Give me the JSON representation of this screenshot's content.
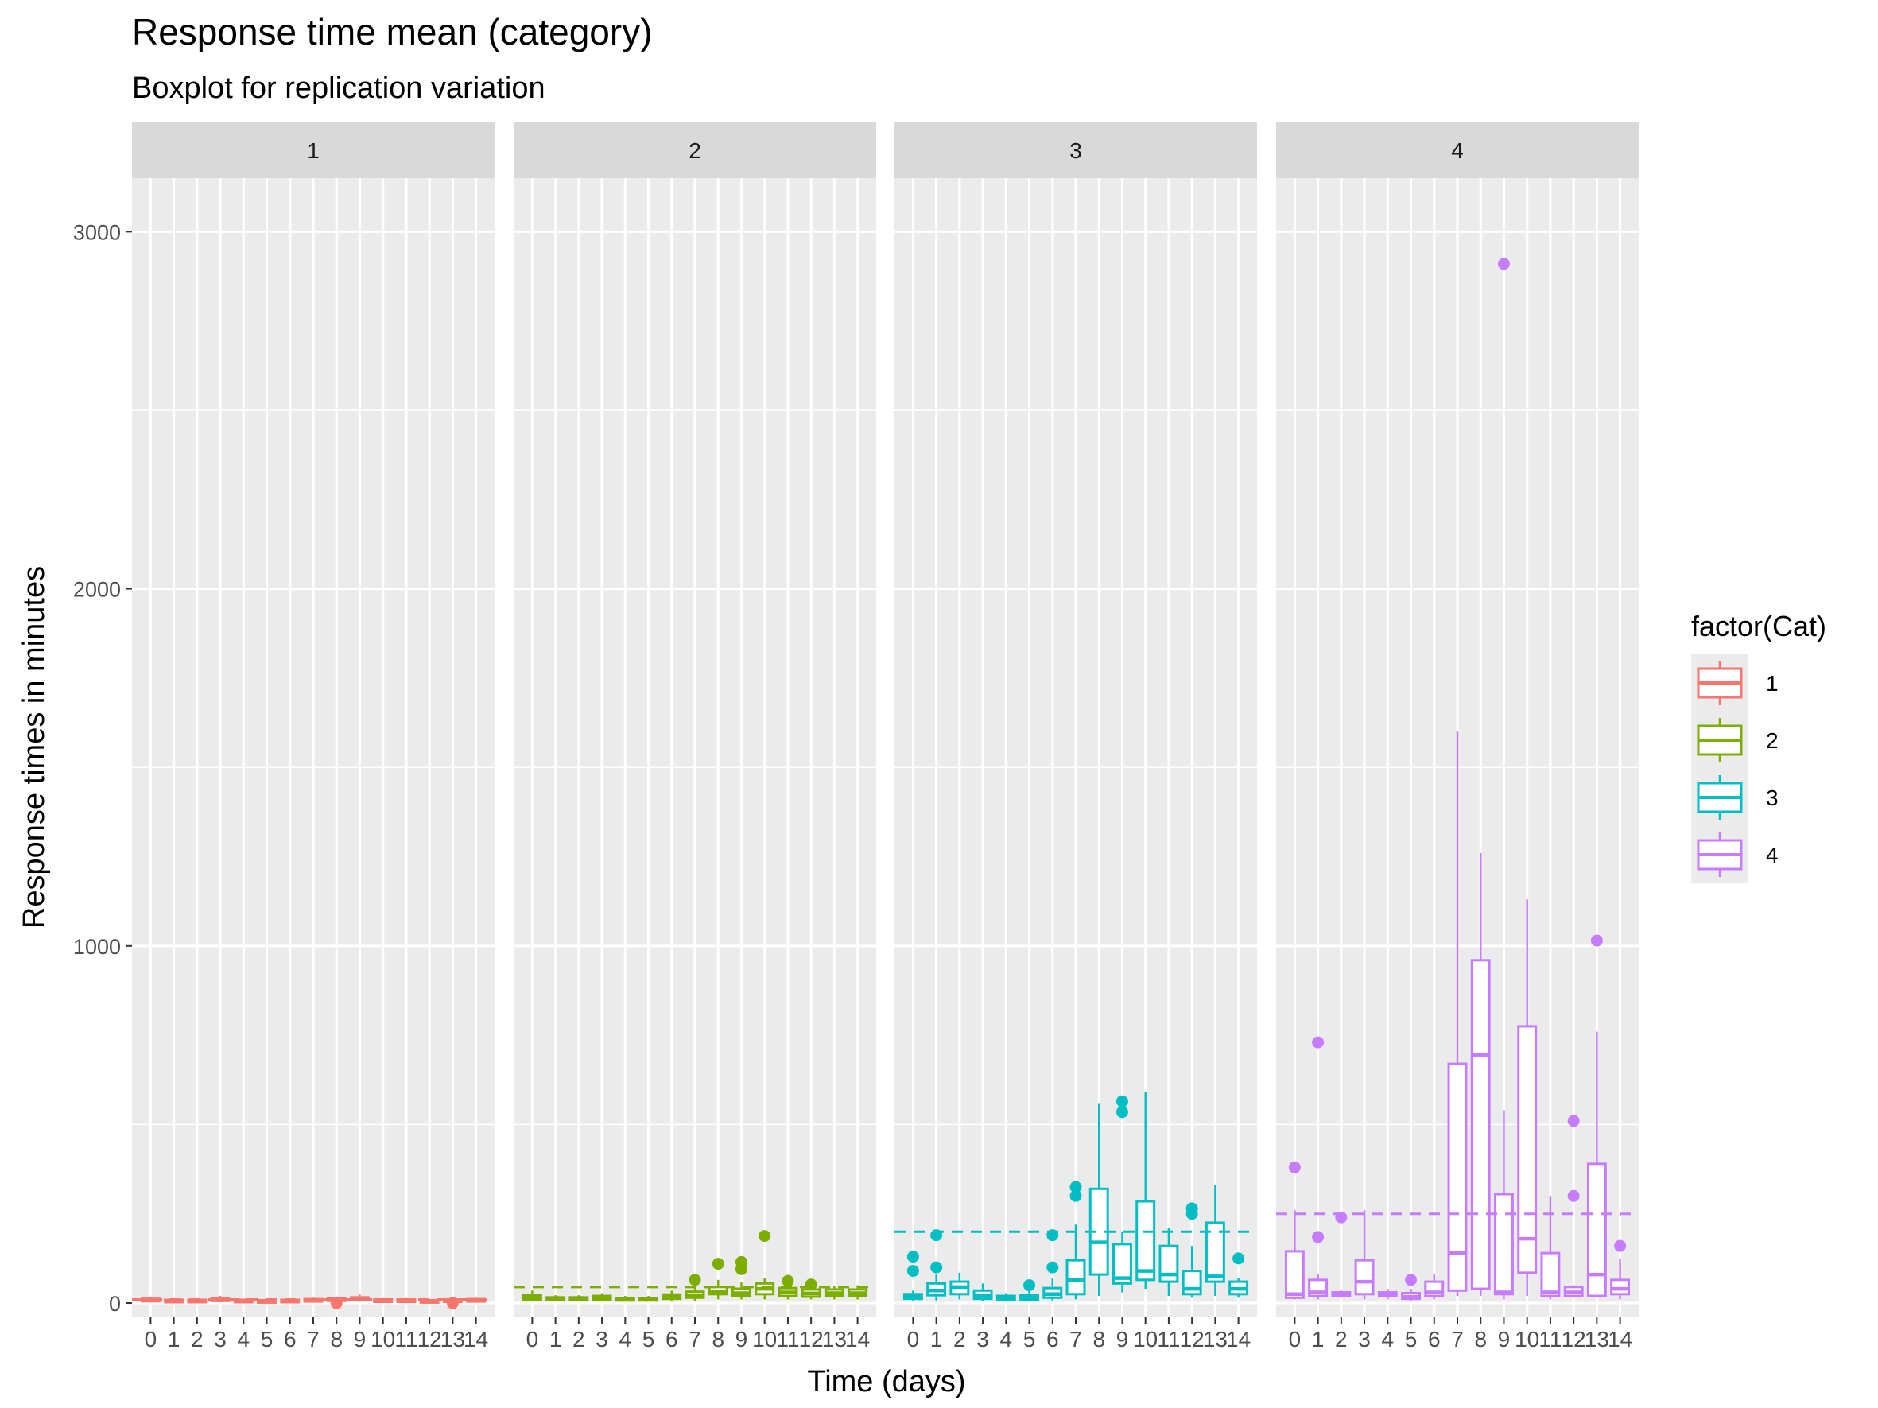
{
  "chart_data": {
    "type": "boxplot",
    "title": "Response time mean (category)",
    "subtitle": "Boxplot for replication variation",
    "xlabel": "Time (days)",
    "ylabel": "Response times in minutes",
    "ylim": [
      -40,
      3150
    ],
    "y_ticks": [
      0,
      1000,
      2000,
      3000
    ],
    "x_categories": [
      "0",
      "1",
      "2",
      "3",
      "4",
      "5",
      "6",
      "7",
      "8",
      "9",
      "10",
      "11",
      "12",
      "13",
      "14"
    ],
    "legend": {
      "title": "factor(Cat)",
      "placement": "right",
      "items": [
        "1",
        "2",
        "3",
        "4"
      ]
    },
    "colors": {
      "1": "#F8766D",
      "2": "#7CAE00",
      "3": "#00BFC4",
      "4": "#C77CFF",
      "panel_bg": "#EBEBEB",
      "strip_bg": "#D9D9D9",
      "grid": "#FFFFFF"
    },
    "grid": true,
    "panels": [
      {
        "category": "1",
        "strip_label": "1",
        "mean_line": 10,
        "boxes": [
          {
            "day": "0",
            "min": 2,
            "q1": 5,
            "median": 8,
            "q3": 12,
            "max": 18,
            "outliers": []
          },
          {
            "day": "1",
            "min": 3,
            "q1": 5,
            "median": 7,
            "q3": 9,
            "max": 12,
            "outliers": []
          },
          {
            "day": "2",
            "min": 3,
            "q1": 5,
            "median": 7,
            "q3": 9,
            "max": 12,
            "outliers": []
          },
          {
            "day": "3",
            "min": 3,
            "q1": 6,
            "median": 9,
            "q3": 13,
            "max": 20,
            "outliers": []
          },
          {
            "day": "4",
            "min": 3,
            "q1": 5,
            "median": 7,
            "q3": 9,
            "max": 12,
            "outliers": []
          },
          {
            "day": "5",
            "min": 3,
            "q1": 4,
            "median": 6,
            "q3": 8,
            "max": 11,
            "outliers": []
          },
          {
            "day": "6",
            "min": 3,
            "q1": 5,
            "median": 7,
            "q3": 9,
            "max": 12,
            "outliers": []
          },
          {
            "day": "7",
            "min": 3,
            "q1": 6,
            "median": 8,
            "q3": 11,
            "max": 15,
            "outliers": []
          },
          {
            "day": "8",
            "min": 3,
            "q1": 6,
            "median": 9,
            "q3": 13,
            "max": 18,
            "outliers": [
              0
            ]
          },
          {
            "day": "9",
            "min": 4,
            "q1": 8,
            "median": 12,
            "q3": 16,
            "max": 24,
            "outliers": []
          },
          {
            "day": "10",
            "min": 3,
            "q1": 5,
            "median": 8,
            "q3": 10,
            "max": 14,
            "outliers": []
          },
          {
            "day": "11",
            "min": 3,
            "q1": 5,
            "median": 7,
            "q3": 10,
            "max": 14,
            "outliers": []
          },
          {
            "day": "12",
            "min": 3,
            "q1": 4,
            "median": 6,
            "q3": 8,
            "max": 11,
            "outliers": []
          },
          {
            "day": "13",
            "min": 3,
            "q1": 5,
            "median": 7,
            "q3": 10,
            "max": 13,
            "outliers": [
              0
            ]
          },
          {
            "day": "14",
            "min": 3,
            "q1": 5,
            "median": 8,
            "q3": 11,
            "max": 15,
            "outliers": []
          }
        ]
      },
      {
        "category": "2",
        "strip_label": "2",
        "mean_line": 45,
        "boxes": [
          {
            "day": "0",
            "min": 5,
            "q1": 10,
            "median": 14,
            "q3": 22,
            "max": 35,
            "outliers": []
          },
          {
            "day": "1",
            "min": 5,
            "q1": 9,
            "median": 12,
            "q3": 16,
            "max": 22,
            "outliers": []
          },
          {
            "day": "2",
            "min": 5,
            "q1": 9,
            "median": 12,
            "q3": 16,
            "max": 22,
            "outliers": []
          },
          {
            "day": "3",
            "min": 5,
            "q1": 10,
            "median": 14,
            "q3": 20,
            "max": 28,
            "outliers": []
          },
          {
            "day": "4",
            "min": 5,
            "q1": 8,
            "median": 11,
            "q3": 14,
            "max": 20,
            "outliers": []
          },
          {
            "day": "5",
            "min": 5,
            "q1": 8,
            "median": 11,
            "q3": 14,
            "max": 20,
            "outliers": []
          },
          {
            "day": "6",
            "min": 5,
            "q1": 12,
            "median": 17,
            "q3": 24,
            "max": 35,
            "outliers": []
          },
          {
            "day": "7",
            "min": 5,
            "q1": 15,
            "median": 22,
            "q3": 32,
            "max": 45,
            "outliers": [
              65
            ]
          },
          {
            "day": "8",
            "min": 10,
            "q1": 25,
            "median": 33,
            "q3": 45,
            "max": 65,
            "outliers": [
              110
            ]
          },
          {
            "day": "9",
            "min": 10,
            "q1": 20,
            "median": 28,
            "q3": 40,
            "max": 58,
            "outliers": [
              95,
              115
            ]
          },
          {
            "day": "10",
            "min": 10,
            "q1": 25,
            "median": 40,
            "q3": 55,
            "max": 70,
            "outliers": [
              188
            ]
          },
          {
            "day": "11",
            "min": 10,
            "q1": 20,
            "median": 30,
            "q3": 42,
            "max": 55,
            "outliers": [
              62
            ]
          },
          {
            "day": "12",
            "min": 10,
            "q1": 18,
            "median": 27,
            "q3": 38,
            "max": 50,
            "outliers": [
              52
            ]
          },
          {
            "day": "13",
            "min": 10,
            "q1": 20,
            "median": 28,
            "q3": 38,
            "max": 48,
            "outliers": []
          },
          {
            "day": "14",
            "min": 10,
            "q1": 20,
            "median": 28,
            "q3": 38,
            "max": 50,
            "outliers": []
          }
        ]
      },
      {
        "category": "3",
        "strip_label": "3",
        "mean_line": 200,
        "boxes": [
          {
            "day": "0",
            "min": 5,
            "q1": 12,
            "median": 18,
            "q3": 25,
            "max": 35,
            "outliers": [
              90,
              130
            ]
          },
          {
            "day": "1",
            "min": 5,
            "q1": 22,
            "median": 35,
            "q3": 55,
            "max": 80,
            "outliers": [
              100,
              190
            ]
          },
          {
            "day": "2",
            "min": 10,
            "q1": 25,
            "median": 45,
            "q3": 60,
            "max": 85,
            "outliers": []
          },
          {
            "day": "3",
            "min": 5,
            "q1": 12,
            "median": 20,
            "q3": 35,
            "max": 55,
            "outliers": []
          },
          {
            "day": "4",
            "min": 5,
            "q1": 10,
            "median": 14,
            "q3": 20,
            "max": 28,
            "outliers": []
          },
          {
            "day": "5",
            "min": 5,
            "q1": 10,
            "median": 15,
            "q3": 22,
            "max": 40,
            "outliers": [
              50
            ]
          },
          {
            "day": "6",
            "min": 5,
            "q1": 15,
            "median": 25,
            "q3": 42,
            "max": 70,
            "outliers": [
              100,
              190
            ]
          },
          {
            "day": "7",
            "min": 10,
            "q1": 25,
            "median": 65,
            "q3": 120,
            "max": 220,
            "outliers": [
              300,
              325
            ]
          },
          {
            "day": "8",
            "min": 20,
            "q1": 80,
            "median": 170,
            "q3": 320,
            "max": 560,
            "outliers": []
          },
          {
            "day": "9",
            "min": 30,
            "q1": 55,
            "median": 70,
            "q3": 165,
            "max": 200,
            "outliers": [
              535,
              565
            ]
          },
          {
            "day": "10",
            "min": 40,
            "q1": 65,
            "median": 90,
            "q3": 285,
            "max": 590,
            "outliers": []
          },
          {
            "day": "11",
            "min": 20,
            "q1": 60,
            "median": 80,
            "q3": 160,
            "max": 210,
            "outliers": []
          },
          {
            "day": "12",
            "min": 15,
            "q1": 25,
            "median": 40,
            "q3": 90,
            "max": 160,
            "outliers": [
              250,
              265
            ]
          },
          {
            "day": "13",
            "min": 20,
            "q1": 60,
            "median": 75,
            "q3": 225,
            "max": 330,
            "outliers": []
          },
          {
            "day": "14",
            "min": 15,
            "q1": 25,
            "median": 40,
            "q3": 60,
            "max": 70,
            "outliers": [
              125
            ]
          }
        ]
      },
      {
        "category": "4",
        "strip_label": "4",
        "mean_line": 250,
        "boxes": [
          {
            "day": "0",
            "min": 10,
            "q1": 15,
            "median": 25,
            "q3": 145,
            "max": 260,
            "outliers": [
              380
            ]
          },
          {
            "day": "1",
            "min": 10,
            "q1": 20,
            "median": 30,
            "q3": 65,
            "max": 80,
            "outliers": [
              185,
              730
            ]
          },
          {
            "day": "2",
            "min": 15,
            "q1": 20,
            "median": 25,
            "q3": 30,
            "max": 35,
            "outliers": [
              240
            ]
          },
          {
            "day": "3",
            "min": 10,
            "q1": 25,
            "median": 60,
            "q3": 120,
            "max": 260,
            "outliers": []
          },
          {
            "day": "4",
            "min": 10,
            "q1": 20,
            "median": 25,
            "q3": 30,
            "max": 40,
            "outliers": []
          },
          {
            "day": "5",
            "min": 5,
            "q1": 12,
            "median": 18,
            "q3": 28,
            "max": 40,
            "outliers": [
              65
            ]
          },
          {
            "day": "6",
            "min": 10,
            "q1": 20,
            "median": 30,
            "q3": 60,
            "max": 80,
            "outliers": []
          },
          {
            "day": "7",
            "min": 20,
            "q1": 35,
            "median": 140,
            "q3": 670,
            "max": 1600,
            "outliers": []
          },
          {
            "day": "8",
            "min": 20,
            "q1": 40,
            "median": 695,
            "q3": 960,
            "max": 1260,
            "outliers": []
          },
          {
            "day": "9",
            "min": 10,
            "q1": 25,
            "median": 30,
            "q3": 305,
            "max": 540,
            "outliers": [
              2910
            ]
          },
          {
            "day": "10",
            "min": 20,
            "q1": 85,
            "median": 180,
            "q3": 775,
            "max": 1130,
            "outliers": []
          },
          {
            "day": "11",
            "min": 10,
            "q1": 20,
            "median": 30,
            "q3": 140,
            "max": 300,
            "outliers": []
          },
          {
            "day": "12",
            "min": 15,
            "q1": 20,
            "median": 30,
            "q3": 45,
            "max": 50,
            "outliers": [
              300,
              510
            ]
          },
          {
            "day": "13",
            "min": 20,
            "q1": 20,
            "median": 80,
            "q3": 390,
            "max": 760,
            "outliers": [
              1015
            ]
          },
          {
            "day": "14",
            "min": 10,
            "q1": 25,
            "median": 40,
            "q3": 65,
            "max": 125,
            "outliers": [
              160
            ]
          }
        ]
      }
    ]
  }
}
